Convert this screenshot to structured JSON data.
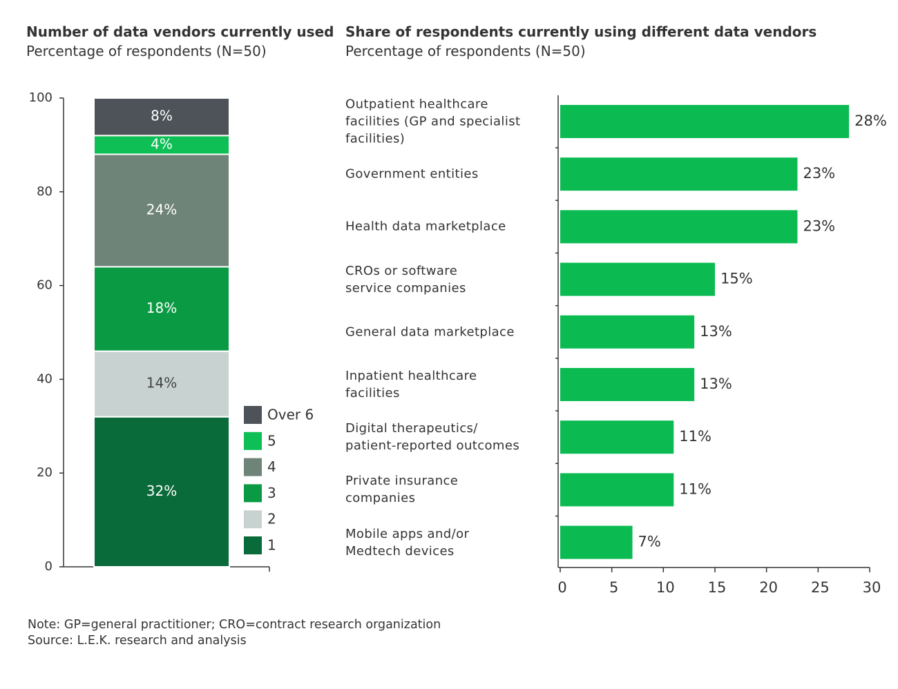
{
  "chart_data": [
    {
      "type": "bar",
      "stacked": true,
      "title": "Number of data vendors currently used",
      "subtitle": "Percentage of respondents (N=50)",
      "categories": [
        null
      ],
      "series": [
        {
          "name": "1",
          "color": "#0a6b3a",
          "values": [
            32
          ],
          "value_labels": [
            "32%"
          ]
        },
        {
          "name": "2",
          "color": "#c8d3d1",
          "values": [
            14
          ],
          "value_labels": [
            "14%"
          ]
        },
        {
          "name": "3",
          "color": "#0b9a44",
          "values": [
            18
          ],
          "value_labels": [
            "18%"
          ]
        },
        {
          "name": "4",
          "color": "#6f8478",
          "values": [
            24
          ],
          "value_labels": [
            "24%"
          ]
        },
        {
          "name": "5",
          "color": "#0dbf55",
          "values": [
            4
          ],
          "value_labels": [
            "4%"
          ]
        },
        {
          "name": "Over 6",
          "color": "#4d5358",
          "values": [
            8
          ],
          "value_labels": [
            "8%"
          ]
        }
      ],
      "ylim": [
        0,
        100
      ],
      "yticks": [
        0,
        20,
        40,
        60,
        80,
        100
      ]
    },
    {
      "type": "bar",
      "orientation": "horizontal",
      "title": "Share of respondents currently using different data vendors",
      "subtitle": "Percentage of respondents (N=50)",
      "categories": [
        "Outpatient healthcare\nfacilities (GP and specialist\nfacilities)",
        "Government entities",
        "Health data marketplace",
        "CROs or software\nservice companies",
        "General data marketplace",
        "Inpatient healthcare\nfacilities",
        "Digital therapeutics/\npatient-reported outcomes",
        "Private insurance\ncompanies",
        "Mobile apps and/or\nMedtech devices"
      ],
      "values": [
        28,
        23,
        23,
        15,
        13,
        13,
        11,
        11,
        7
      ],
      "value_labels": [
        "28%",
        "23%",
        "23%",
        "15%",
        "13%",
        "13%",
        "11%",
        "11%",
        "7%"
      ],
      "color": "#0bbb52",
      "xlim": [
        0,
        30
      ],
      "xticks": [
        0,
        5,
        10,
        15,
        20,
        25,
        30
      ]
    }
  ],
  "notes": [
    "Note: GP=general practitioner; CRO=contract research organization",
    "Source: L.E.K. research and analysis"
  ]
}
